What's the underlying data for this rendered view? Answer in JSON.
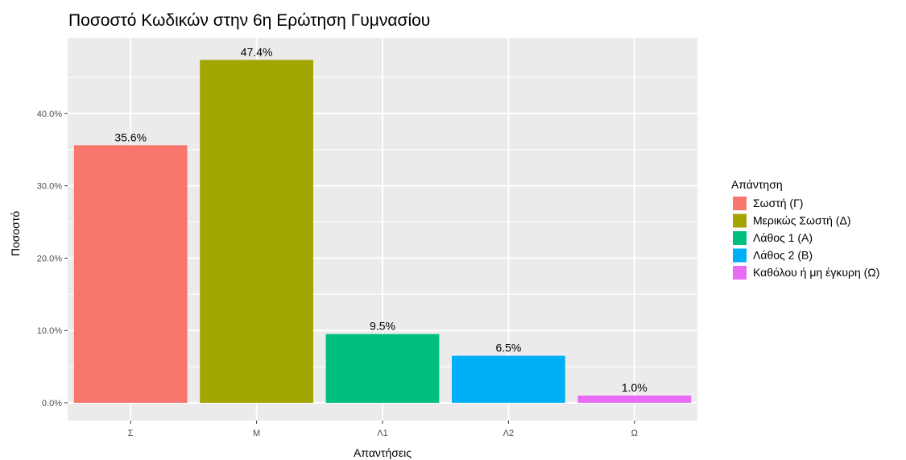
{
  "chart_data": {
    "type": "bar",
    "title": "Ποσοστό Κωδικών στην 6η Ερώτηση Γυμνασίου",
    "xlabel": "Απαντήσεις",
    "ylabel": "Ποσοστό",
    "categories": [
      "Σ",
      "Μ",
      "Λ1",
      "Λ2",
      "Ω"
    ],
    "values": [
      35.6,
      47.4,
      9.5,
      6.5,
      1.0
    ],
    "data_labels": [
      "35.6%",
      "47.4%",
      "9.5%",
      "6.5%",
      "1.0%"
    ],
    "colors": [
      "#F8766D",
      "#A3A500",
      "#00BF7D",
      "#00B0F6",
      "#E76BF3"
    ],
    "ylim": [
      0,
      50
    ],
    "yticks": [
      0,
      10,
      20,
      30,
      40
    ],
    "ytick_labels": [
      "0.0%",
      "10.0%",
      "20.0%",
      "30.0%",
      "40.0%"
    ],
    "grid": true,
    "panel_background": "#EBEBEB",
    "legend": {
      "title": "Απάντηση",
      "position": "right",
      "entries": [
        "Σωστή (Γ)",
        "Μερικώς Σωστή (Δ)",
        "Λάθος 1 (Α)",
        "Λάθος 2 (Β)",
        "Καθόλου ή μη έγκυρη (Ω)"
      ]
    }
  }
}
